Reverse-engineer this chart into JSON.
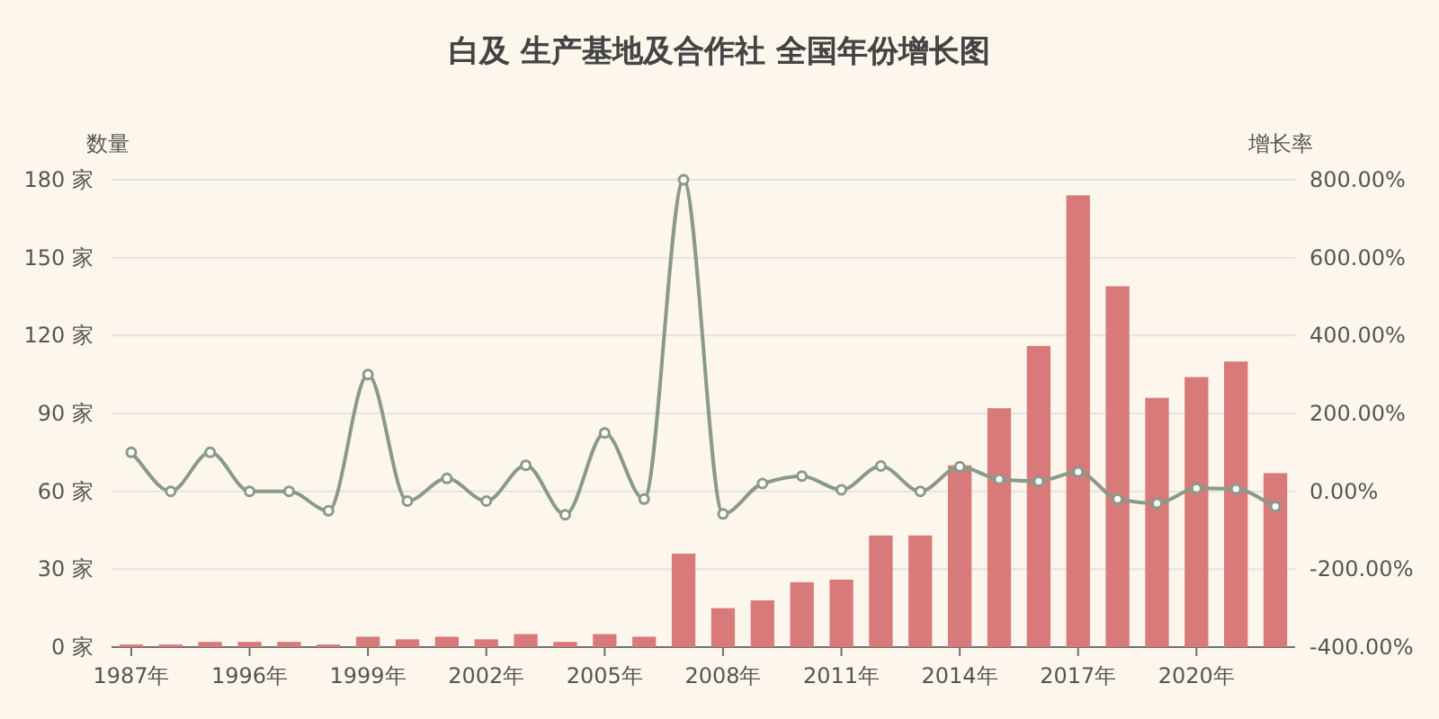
{
  "chart_data": {
    "type": "bar",
    "title": "白及  生产基地及合作社  全国年份增长图",
    "ylabel": "数量",
    "y2label": "增长率",
    "categories": [
      "1987年",
      null,
      null,
      "1996年",
      null,
      null,
      "1999年",
      null,
      null,
      "2002年",
      null,
      null,
      "2005年",
      null,
      null,
      "2008年",
      null,
      null,
      "2011年",
      null,
      null,
      "2014年",
      null,
      null,
      "2017年",
      null,
      null,
      "2020年",
      null,
      null
    ],
    "series": [
      {
        "color": "#d87a7a",
        "values": [
          1,
          1,
          2,
          2,
          2,
          1,
          4,
          3,
          4,
          3,
          5,
          2,
          5,
          4,
          36,
          15,
          18,
          25,
          26,
          43,
          43,
          70,
          92,
          116,
          174,
          139,
          96,
          104,
          110,
          67
        ]
      },
      {
        "type": "line",
        "axis": "y2",
        "color": "#8a9a88",
        "marker": "circle",
        "line_style": "solid",
        "values": [
          100,
          0,
          100,
          0,
          0,
          -50,
          300,
          -25,
          33,
          -25,
          67,
          -60,
          150,
          -20,
          800,
          -58,
          20,
          39,
          4,
          65,
          0,
          63,
          31,
          26,
          50,
          -20,
          -31,
          8,
          6,
          -39
        ]
      }
    ],
    "ylim": [
      0,
      180
    ],
    "yticks": [
      {
        "value": 0,
        "label": "0 家"
      },
      {
        "value": 30,
        "label": "30 家"
      },
      {
        "value": 60,
        "label": "60 家"
      },
      {
        "value": 90,
        "label": "90 家"
      },
      {
        "value": 120,
        "label": "120 家"
      },
      {
        "value": 150,
        "label": "150 家"
      },
      {
        "value": 180,
        "label": "180 家"
      }
    ],
    "y2lim": [
      -400,
      800
    ],
    "y2ticks": [
      {
        "value": -400,
        "label": "-400.00%"
      },
      {
        "value": -200,
        "label": "-200.00%"
      },
      {
        "value": 0,
        "label": "0.00%"
      },
      {
        "value": 200,
        "label": "200.00%"
      },
      {
        "value": 400,
        "label": "400.00%"
      },
      {
        "value": 600,
        "label": "600.00%"
      },
      {
        "value": 800,
        "label": "800.00%"
      }
    ],
    "grid": "y"
  }
}
